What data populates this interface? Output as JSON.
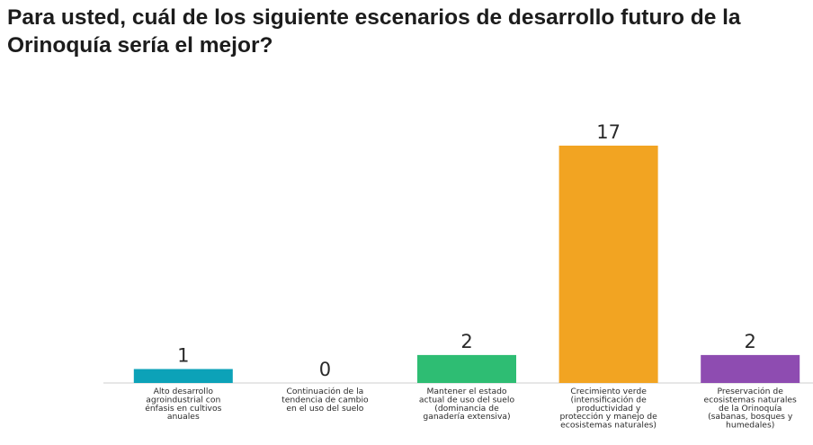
{
  "title": "Para usted, cuál de los siguiente escenarios de desarrollo futuro de la Orinoquía sería el mejor?",
  "colors": {
    "background": "#ffffff",
    "baseline": "#cfcfcf",
    "text": "#2a2a2a"
  },
  "chart_data": {
    "type": "bar",
    "title": "Para usted, cuál de los siguiente escenarios de desarrollo futuro de la Orinoquía sería el mejor?",
    "xlabel": "",
    "ylabel": "",
    "ylim": [
      0,
      17
    ],
    "grid": false,
    "legend": "none",
    "categories": [
      [
        "Alto desarrollo",
        "agroindustrial con",
        "énfasis en cultivos",
        "anuales"
      ],
      [
        "Continuación de la",
        "tendencia de cambio",
        "en el uso del suelo"
      ],
      [
        "Mantener el estado",
        "actual de uso del suelo",
        "(dominancia de",
        "ganadería extensiva)"
      ],
      [
        "Crecimiento verde",
        "(intensificación de",
        "productividad y",
        "protección y manejo de",
        "ecosistemas naturales)"
      ],
      [
        "Preservación de",
        "ecosistemas naturales",
        "de la Orinoquía",
        "(sabanas, bosques y",
        "humedales)"
      ]
    ],
    "values": [
      1,
      0,
      2,
      17,
      2
    ],
    "data_labels": [
      "1",
      "0",
      "2",
      "17",
      "2"
    ],
    "bar_colors": [
      "#0ca2b8",
      "#b0b0b0",
      "#2ebd73",
      "#f2a422",
      "#8e4cb1"
    ]
  }
}
